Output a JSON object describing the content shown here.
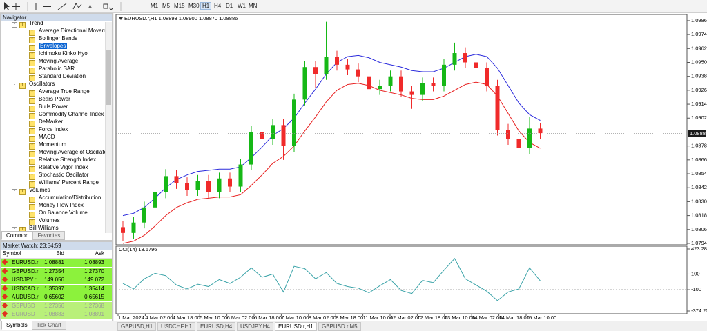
{
  "toolbar": {
    "timeframes": [
      "M1",
      "M5",
      "M15",
      "M30",
      "H1",
      "H4",
      "D1",
      "W1",
      "MN"
    ]
  },
  "navigator": {
    "title": "Navigator",
    "groups": [
      {
        "name": "Trend",
        "items": [
          "Average Directional Movemen",
          "Bollinger Bands",
          "Envelopes",
          "Ichimoku Kinko Hyo",
          "Moving Average",
          "Parabolic SAR",
          "Standard Deviation"
        ]
      },
      {
        "name": "Oscillators",
        "items": [
          "Average True Range",
          "Bears Power",
          "Bulls Power",
          "Commodity Channel Index",
          "DeMarker",
          "Force Index",
          "MACD",
          "Momentum",
          "Moving Average of Oscillator",
          "Relative Strength Index",
          "Relative Vigor Index",
          "Stochastic Oscillator",
          "Williams' Percent Range"
        ]
      },
      {
        "name": "Volumes",
        "items": [
          "Accumulation/Distribution",
          "Money Flow Index",
          "On Balance Volume",
          "Volumes"
        ]
      },
      {
        "name": "Bill Williams",
        "items": []
      }
    ],
    "tabs": [
      "Common",
      "Favorites"
    ]
  },
  "market_watch": {
    "title": "Market Watch: 23:54:59",
    "columns": [
      "Symbol",
      "Bid",
      "Ask"
    ],
    "rows": [
      [
        "EURUSD.r",
        "1.08881",
        "1.08893"
      ],
      [
        "GBPUSD.r",
        "1.27354",
        "1.27370"
      ],
      [
        "USDJPY.r",
        "149.056",
        "149.072"
      ],
      [
        "USDCAD.r",
        "1.35397",
        "1.35414"
      ],
      [
        "AUDUSD.r",
        "0.65602",
        "0.65615"
      ],
      [
        "GBPUSD",
        "1.27356",
        "1.27368"
      ],
      [
        "EURUSD",
        "1.08883",
        "1.08891"
      ]
    ],
    "tabs": [
      "Symbols",
      "Tick Chart"
    ]
  },
  "chart_tabs": [
    "GBPUSD,H1",
    "USDCHF,H1",
    "EURUSD,H4",
    "USDJPY,H4",
    "EURUSD.r,H1",
    "GBPUSD.r,M5"
  ],
  "chart_data": [
    {
      "type": "candlestick",
      "title": "EURUSD.r,H1  1.08893 1.08900 1.08870 1.08886",
      "open": [
        1.0808,
        1.0803,
        1.0812,
        1.0825,
        1.0838,
        1.0852,
        1.0846,
        1.084,
        1.0848,
        1.0838,
        1.085,
        1.0843,
        1.0862,
        1.089,
        1.0884,
        1.0896,
        1.0878,
        1.0918,
        1.0946,
        1.094,
        1.0955,
        1.0948,
        1.0944,
        1.0938,
        1.0927,
        1.093,
        1.0938,
        1.0925,
        1.0922,
        1.0932,
        1.093,
        1.0948,
        1.0958,
        1.095,
        1.0945,
        1.093,
        1.0892,
        1.0884,
        1.0876,
        1.0893
      ],
      "high": [
        1.0813,
        1.0817,
        1.083,
        1.0843,
        1.0858,
        1.0857,
        1.0851,
        1.0853,
        1.0853,
        1.0855,
        1.0855,
        1.0867,
        1.0895,
        1.0895,
        1.0901,
        1.0901,
        1.0923,
        1.0951,
        1.0951,
        1.0985,
        1.096,
        1.0953,
        1.0949,
        1.0943,
        1.0935,
        1.0943,
        1.0943,
        1.093,
        1.0937,
        1.0937,
        1.0953,
        1.0967,
        1.0963,
        1.0955,
        1.095,
        1.0935,
        1.0897,
        1.0889,
        1.0903,
        1.0898
      ],
      "low": [
        1.0796,
        1.0798,
        1.0807,
        1.082,
        1.0833,
        1.0841,
        1.0835,
        1.0835,
        1.0833,
        1.0833,
        1.0838,
        1.0838,
        1.0857,
        1.0879,
        1.0879,
        1.0866,
        1.0873,
        1.0913,
        1.0928,
        1.0935,
        1.0943,
        1.0939,
        1.0933,
        1.0922,
        1.0922,
        1.0925,
        1.092,
        1.091,
        1.0917,
        1.0925,
        1.0925,
        1.0943,
        1.0945,
        1.094,
        1.0925,
        1.0887,
        1.0879,
        1.0871,
        1.0871,
        1.0884
      ],
      "close": [
        1.0803,
        1.0812,
        1.0825,
        1.0838,
        1.0852,
        1.0846,
        1.084,
        1.0848,
        1.0838,
        1.085,
        1.0843,
        1.0862,
        1.089,
        1.0884,
        1.0896,
        1.0878,
        1.0918,
        1.0946,
        1.094,
        1.0955,
        1.0948,
        1.0944,
        1.0938,
        1.0927,
        1.093,
        1.0938,
        1.0925,
        1.0922,
        1.0932,
        1.093,
        1.0948,
        1.0958,
        1.095,
        1.0945,
        1.093,
        1.0892,
        1.0884,
        1.0876,
        1.0893,
        1.0889
      ],
      "up_color": "#16b816",
      "down_color": "#f02a2a",
      "series": [
        {
          "color": "#2b2bdc",
          "values": [
            1.0818,
            1.082,
            1.0825,
            1.0833,
            1.0842,
            1.0849,
            1.0853,
            1.0856,
            1.0857,
            1.0858,
            1.0858,
            1.086,
            1.0868,
            1.0877,
            1.0887,
            1.0893,
            1.0902,
            1.0915,
            1.0927,
            1.094,
            1.095,
            1.0955,
            1.0956,
            1.0954,
            1.095,
            1.0948,
            1.0946,
            1.0943,
            1.0942,
            1.0942,
            1.0945,
            1.095,
            1.0955,
            1.0957,
            1.0955,
            1.0945,
            1.093,
            1.0915,
            1.0905,
            1.09
          ]
        },
        {
          "color": "#e82020",
          "values": [
            1.0794,
            1.0796,
            1.0801,
            1.0809,
            1.0818,
            1.0825,
            1.0829,
            1.0832,
            1.0833,
            1.0834,
            1.0834,
            1.0836,
            1.0844,
            1.0853,
            1.0863,
            1.0869,
            1.0878,
            1.0891,
            1.0903,
            1.0916,
            1.0926,
            1.0931,
            1.0932,
            1.093,
            1.0926,
            1.0924,
            1.0922,
            1.0919,
            1.0918,
            1.0918,
            1.0921,
            1.0926,
            1.0931,
            1.0933,
            1.0931,
            1.0921,
            1.0906,
            1.0891,
            1.0881,
            1.0876
          ]
        }
      ],
      "last_price": {
        "value": 1.08886,
        "label": "1.08886"
      },
      "ylim": [
        1.07928,
        1.09913
      ],
      "yticks": [
        {
          "value": 1.0986,
          "label": "1.09860"
        },
        {
          "value": 1.0974,
          "label": "1.09740"
        },
        {
          "value": 1.0962,
          "label": "1.09620"
        },
        {
          "value": 1.095,
          "label": "1.09500"
        },
        {
          "value": 1.0938,
          "label": "1.09380"
        },
        {
          "value": 1.0926,
          "label": "1.09260"
        },
        {
          "value": 1.0914,
          "label": "1.09140"
        },
        {
          "value": 1.0902,
          "label": "1.09020"
        },
        {
          "value": 1.0878,
          "label": "1.08780"
        },
        {
          "value": 1.0866,
          "label": "1.08660"
        },
        {
          "value": 1.0854,
          "label": "1.08540"
        },
        {
          "value": 1.0842,
          "label": "1.08420"
        },
        {
          "value": 1.083,
          "label": "1.08300"
        },
        {
          "value": 1.0818,
          "label": "1.08180"
        },
        {
          "value": 1.0806,
          "label": "1.08060"
        },
        {
          "value": 1.0794,
          "label": "1.07940"
        }
      ]
    },
    {
      "type": "line",
      "title": "CCI(14) 13.6796",
      "color": "#3aa3a8",
      "values": [
        -20,
        -90,
        40,
        110,
        80,
        -40,
        -90,
        -30,
        -60,
        30,
        -20,
        60,
        180,
        60,
        100,
        -130,
        200,
        170,
        40,
        120,
        -20,
        -60,
        -80,
        -140,
        -50,
        30,
        -110,
        -150,
        20,
        -10,
        150,
        300,
        40,
        -40,
        -120,
        -240,
        -130,
        -90,
        180,
        13.6796
      ],
      "ylim": [
        -374.2047,
        423.282
      ],
      "yticks": [
        {
          "value": 423.282,
          "label": "423.282"
        },
        100,
        -100,
        {
          "value": -374.2047,
          "label": "-374.2047"
        }
      ],
      "x_tick_labels": [
        "1 Mar 2024",
        "4 Mar 02:00",
        "4 Mar 18:00",
        "5 Mar 10:00",
        "6 Mar 02:00",
        "6 Mar 18:00",
        "7 Mar 10:00",
        "8 Mar 02:00",
        "8 Mar 18:00",
        "11 Mar 10:00",
        "12 Mar 02:00",
        "12 Mar 18:00",
        "13 Mar 10:00",
        "14 Mar 02:00",
        "14 Mar 18:00",
        "15 Mar 10:00"
      ]
    }
  ]
}
